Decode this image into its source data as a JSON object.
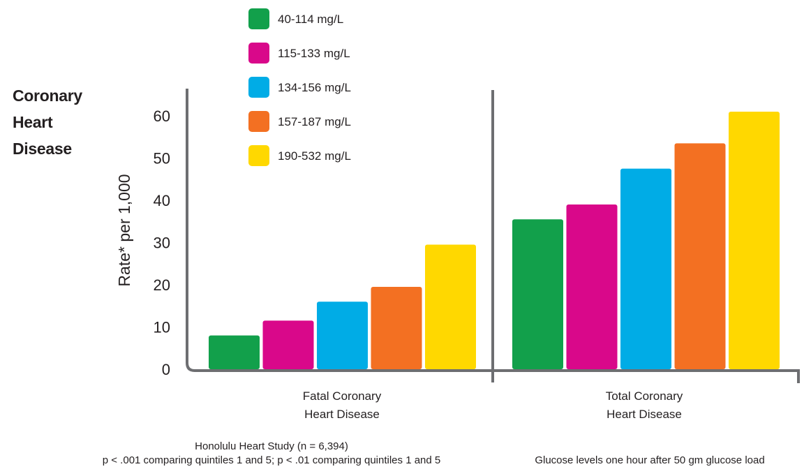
{
  "side_title": [
    "Coronary",
    "Heart",
    "Disease"
  ],
  "footer": {
    "study": "Honolulu Heart Study (n = 6,394)",
    "significance": "p < .001 comparing quintiles 1 and 5; p < .01 comparing quintiles 1 and 5",
    "note": "Glucose levels one hour after 50 gm glucose load"
  },
  "chart_data": {
    "type": "bar",
    "title": "",
    "xlabel": "",
    "ylabel": "Rate* per 1,000",
    "ylim": [
      0,
      60
    ],
    "yticks": [
      0,
      10,
      20,
      30,
      40,
      50,
      60
    ],
    "grid": false,
    "legend_position": "top-left",
    "categories": [
      [
        "Fatal Coronary",
        "Heart Disease"
      ],
      [
        "Total Coronary",
        "Heart Disease"
      ]
    ],
    "series": [
      {
        "name": "40-114 mg/L",
        "color": "#12a04b",
        "values": [
          8,
          35.5
        ]
      },
      {
        "name": "115-133 mg/L",
        "color": "#d9088a",
        "values": [
          11.5,
          39
        ]
      },
      {
        "name": "134-156 mg/L",
        "color": "#00ace6",
        "values": [
          16,
          47.5
        ]
      },
      {
        "name": "157-187 mg/L",
        "color": "#f37022",
        "values": [
          19.5,
          53.5
        ]
      },
      {
        "name": "190-532 mg/L",
        "color": "#ffd800",
        "values": [
          29.5,
          61
        ]
      }
    ]
  }
}
